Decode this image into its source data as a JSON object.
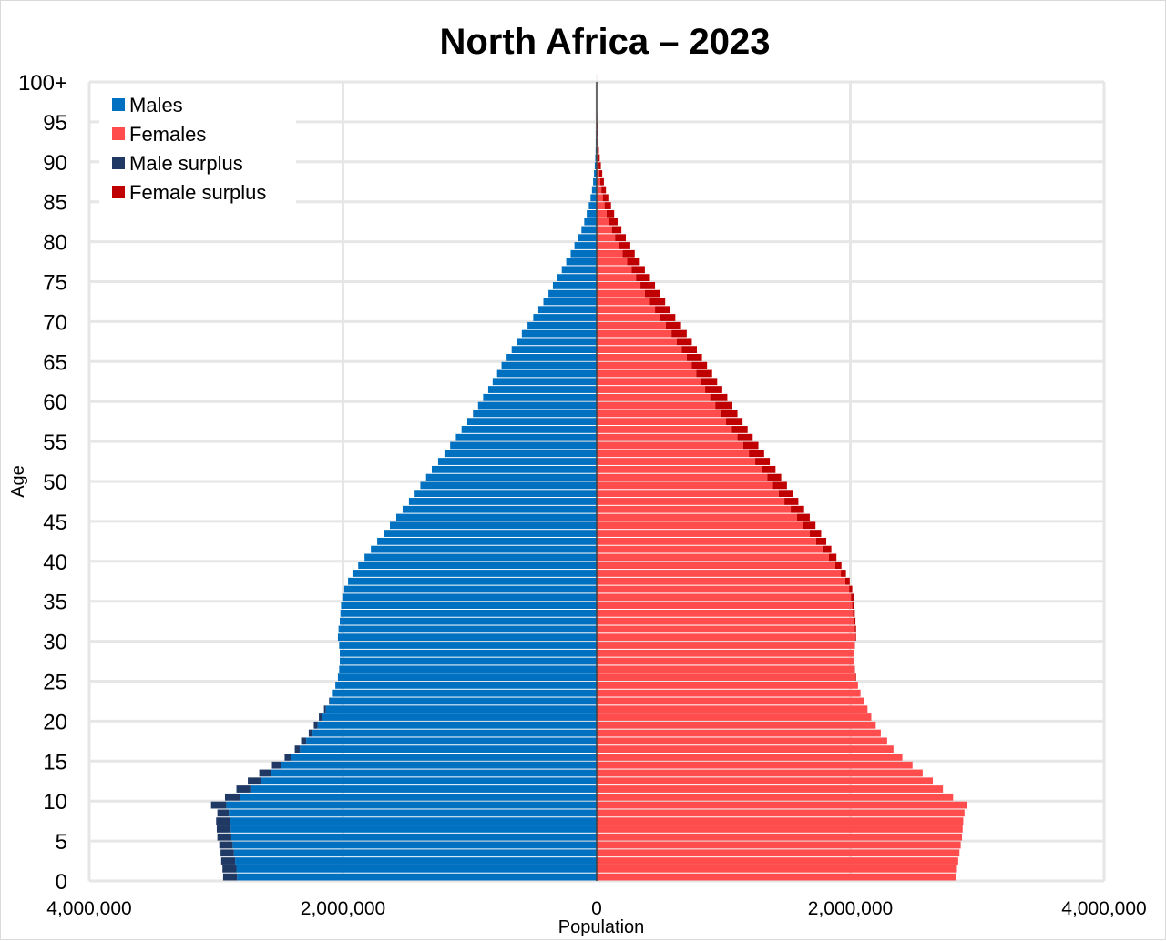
{
  "chart_data": {
    "type": "bar",
    "orientation": "horizontal",
    "title": "North Africa – 2023",
    "xlabel": "Population",
    "ylabel": "Age",
    "xlim": [
      -4000000,
      4000000
    ],
    "ylim": [
      0,
      100
    ],
    "x_ticks": [
      {
        "value": -4000000,
        "label": "4,000,000"
      },
      {
        "value": -2000000,
        "label": "2,000,000"
      },
      {
        "value": 0,
        "label": "0"
      },
      {
        "value": 2000000,
        "label": "2,000,000"
      },
      {
        "value": 4000000,
        "label": "4,000,000"
      }
    ],
    "y_ticks": [
      {
        "value": 0,
        "label": "0"
      },
      {
        "value": 5,
        "label": "5"
      },
      {
        "value": 10,
        "label": "10"
      },
      {
        "value": 15,
        "label": "15"
      },
      {
        "value": 20,
        "label": "20"
      },
      {
        "value": 25,
        "label": "25"
      },
      {
        "value": 30,
        "label": "30"
      },
      {
        "value": 35,
        "label": "35"
      },
      {
        "value": 40,
        "label": "40"
      },
      {
        "value": 45,
        "label": "45"
      },
      {
        "value": 50,
        "label": "50"
      },
      {
        "value": 55,
        "label": "55"
      },
      {
        "value": 60,
        "label": "60"
      },
      {
        "value": 65,
        "label": "65"
      },
      {
        "value": 70,
        "label": "70"
      },
      {
        "value": 75,
        "label": "75"
      },
      {
        "value": 80,
        "label": "80"
      },
      {
        "value": 85,
        "label": "85"
      },
      {
        "value": 90,
        "label": "90"
      },
      {
        "value": 95,
        "label": "95"
      },
      {
        "value": 100,
        "label": "100+"
      }
    ],
    "grid": true,
    "legend_position": "top-left",
    "legend": [
      {
        "label": "Males",
        "color": "#0070c0"
      },
      {
        "label": "Females",
        "color": "#ff4d4d"
      },
      {
        "label": "Male surplus",
        "color": "#203864"
      },
      {
        "label": "Female surplus",
        "color": "#c00000"
      }
    ],
    "colors": {
      "males": "#0070c0",
      "females": "#ff4d4d",
      "male_surplus": "#203864",
      "female_surplus": "#c00000",
      "grid": "#e6e6e6",
      "center_line": "#404040"
    },
    "ages": [
      0,
      1,
      2,
      3,
      4,
      5,
      6,
      7,
      8,
      9,
      10,
      11,
      12,
      13,
      14,
      15,
      16,
      17,
      18,
      19,
      20,
      21,
      22,
      23,
      24,
      25,
      26,
      27,
      28,
      29,
      30,
      31,
      32,
      33,
      34,
      35,
      36,
      37,
      38,
      39,
      40,
      41,
      42,
      43,
      44,
      45,
      46,
      47,
      48,
      49,
      50,
      51,
      52,
      53,
      54,
      55,
      56,
      57,
      58,
      59,
      60,
      61,
      62,
      63,
      64,
      65,
      66,
      67,
      68,
      69,
      70,
      71,
      72,
      73,
      74,
      75,
      76,
      77,
      78,
      79,
      80,
      81,
      82,
      83,
      84,
      85,
      86,
      87,
      88,
      89,
      90,
      91,
      92,
      93,
      94,
      95,
      96,
      97,
      98,
      99,
      100
    ],
    "series": [
      {
        "name": "Males",
        "values": [
          2945000,
          2950000,
          2960000,
          2965000,
          2975000,
          2990000,
          2995000,
          3000000,
          2990000,
          3040000,
          2930000,
          2840000,
          2750000,
          2660000,
          2560000,
          2460000,
          2380000,
          2330000,
          2270000,
          2230000,
          2190000,
          2150000,
          2110000,
          2080000,
          2060000,
          2040000,
          2030000,
          2025000,
          2025000,
          2030000,
          2040000,
          2035000,
          2025000,
          2020000,
          2015000,
          2005000,
          1990000,
          1960000,
          1925000,
          1880000,
          1830000,
          1780000,
          1730000,
          1680000,
          1630000,
          1580000,
          1530000,
          1480000,
          1435000,
          1390000,
          1345000,
          1300000,
          1250000,
          1200000,
          1155000,
          1110000,
          1065000,
          1020000,
          975000,
          935000,
          895000,
          855000,
          820000,
          785000,
          750000,
          710000,
          670000,
          630000,
          590000,
          545000,
          500000,
          460000,
          420000,
          380000,
          345000,
          310000,
          275000,
          240000,
          205000,
          175000,
          145000,
          120000,
          98000,
          78000,
          62000,
          48000,
          37000,
          28000,
          21000,
          15000,
          11000,
          8000,
          6000,
          4500,
          3200,
          2300,
          1600,
          1100,
          800,
          550,
          400
        ]
      },
      {
        "name": "Females",
        "values": [
          2835000,
          2840000,
          2850000,
          2860000,
          2870000,
          2880000,
          2885000,
          2890000,
          2900000,
          2920000,
          2810000,
          2730000,
          2650000,
          2570000,
          2490000,
          2410000,
          2340000,
          2290000,
          2240000,
          2200000,
          2165000,
          2135000,
          2105000,
          2080000,
          2060000,
          2045000,
          2035000,
          2030000,
          2030000,
          2035000,
          2045000,
          2045000,
          2040000,
          2035000,
          2030000,
          2025000,
          2015000,
          1995000,
          1965000,
          1930000,
          1890000,
          1850000,
          1810000,
          1770000,
          1725000,
          1680000,
          1635000,
          1590000,
          1545000,
          1500000,
          1455000,
          1410000,
          1365000,
          1320000,
          1275000,
          1230000,
          1190000,
          1150000,
          1110000,
          1070000,
          1030000,
          990000,
          950000,
          910000,
          870000,
          830000,
          790000,
          750000,
          710000,
          665000,
          620000,
          580000,
          540000,
          500000,
          460000,
          420000,
          380000,
          340000,
          300000,
          265000,
          230000,
          195000,
          165000,
          138000,
          113000,
          92000,
          73000,
          57000,
          44000,
          33000,
          24000,
          17500,
          12500,
          9000,
          6300,
          4500,
          3100,
          2100,
          1500,
          1000,
          700
        ]
      }
    ]
  }
}
